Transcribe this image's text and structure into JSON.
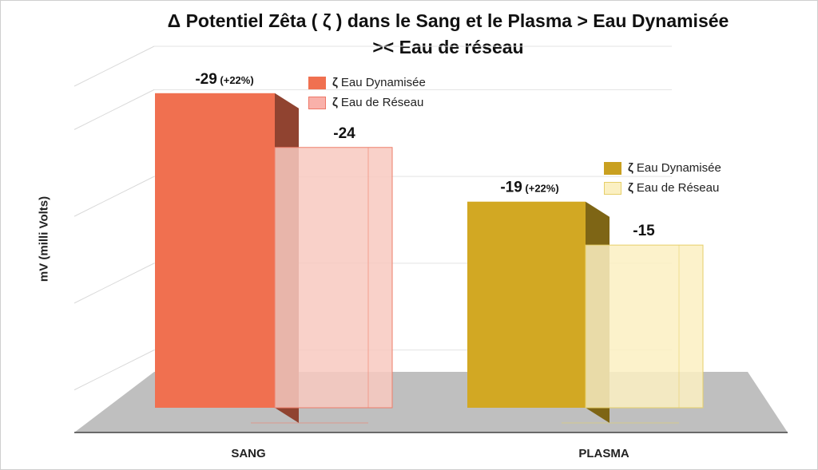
{
  "chart_data": {
    "type": "bar",
    "title_line1": "Δ Potentiel Zêta ( ζ ) dans le Sang et le Plasma > Eau Dynamisée",
    "title_line2": ">< Eau de réseau",
    "ylabel": "mV (milli Volts)",
    "categories": [
      "SANG",
      "PLASMA"
    ],
    "series": [
      {
        "name": "Eau Dynamisée",
        "values": [
          -29,
          -19
        ],
        "labels": [
          "-29",
          "-19"
        ],
        "notes": [
          "(+22%)",
          "(+22%)"
        ]
      },
      {
        "name": "Eau de Réseau",
        "values": [
          -24,
          -15
        ],
        "labels": [
          "-24",
          "-15"
        ]
      }
    ],
    "legends": [
      {
        "symbol": "ζ",
        "items": [
          "Eau Dynamisée",
          "Eau de Réseau"
        ]
      },
      {
        "symbol": "ζ",
        "items": [
          "Eau Dynamisée",
          "Eau de Réseau"
        ]
      }
    ],
    "colors": {
      "sang_dyn": "#F07050",
      "sang_res": "#F8C9C0",
      "plasma_dyn": "#D2A823",
      "plasma_res": "#FBF0C2",
      "floor": "#BFBFBF"
    },
    "magnitude_axis_max": 32
  }
}
